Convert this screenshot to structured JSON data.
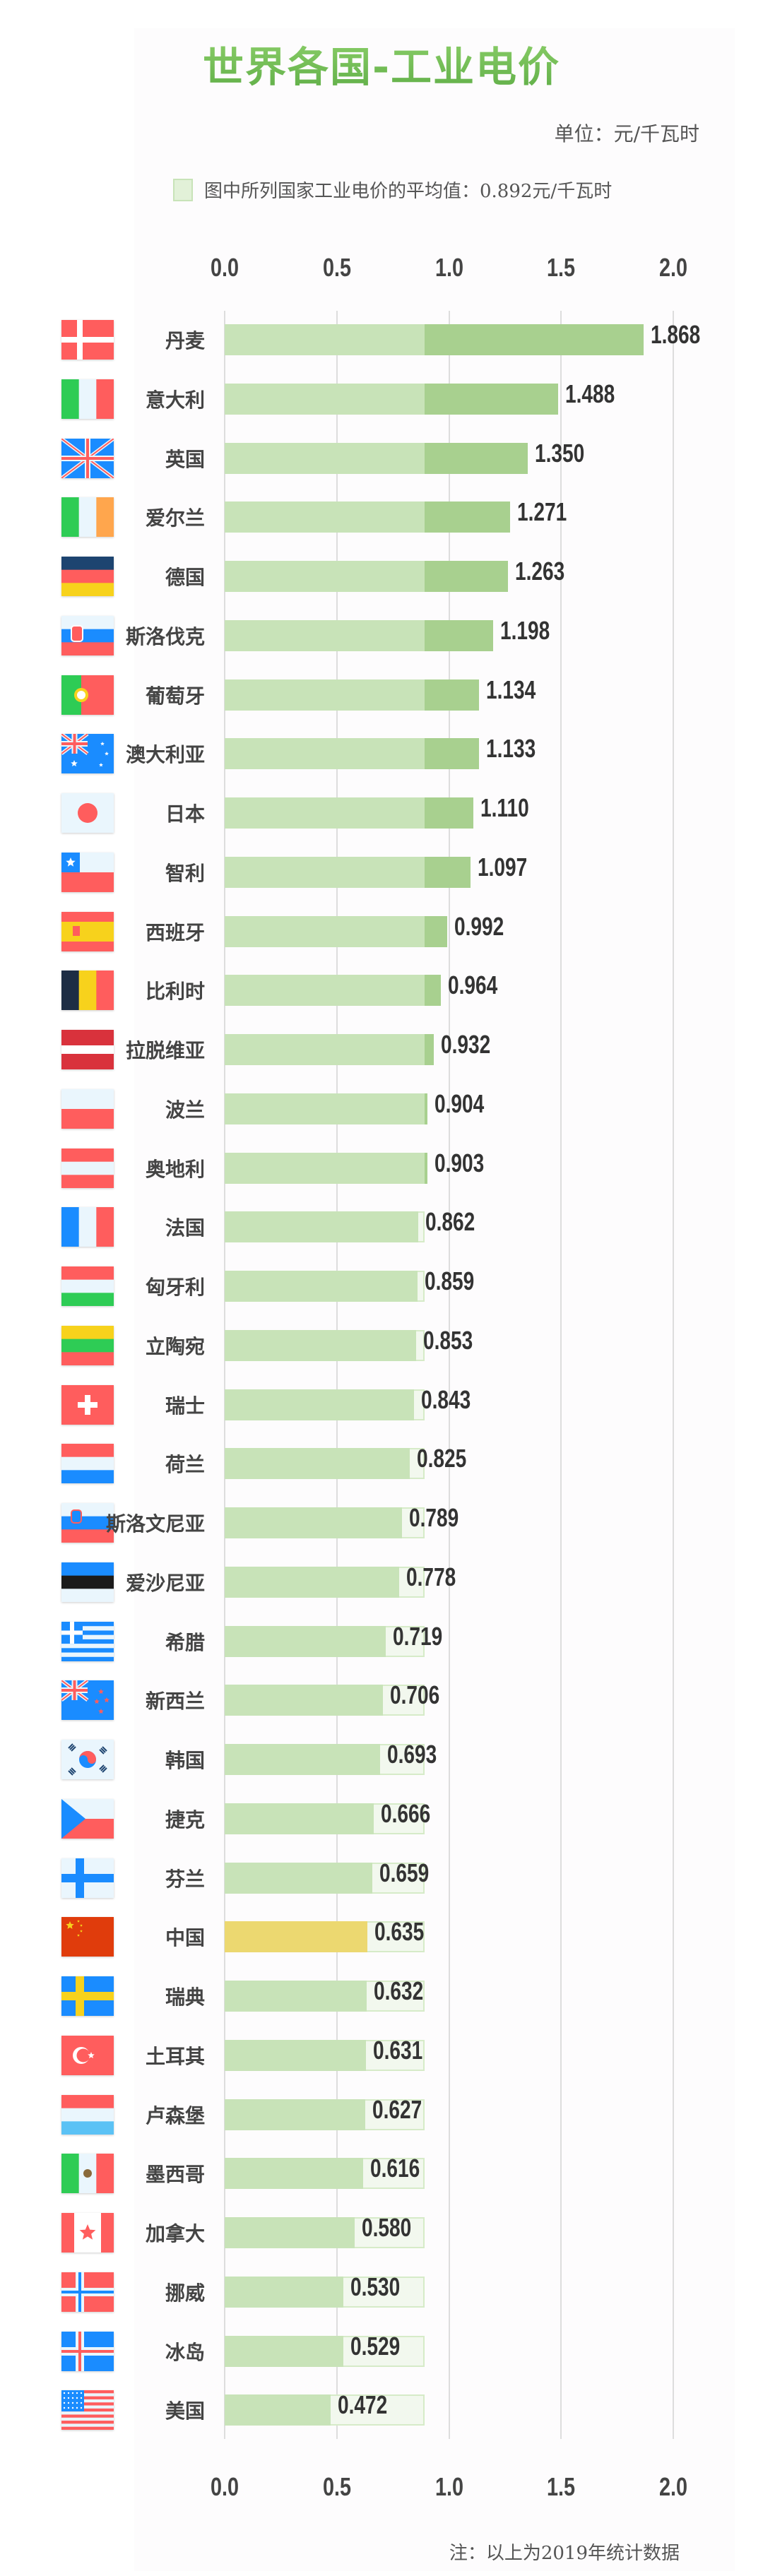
{
  "title": "世界各国-工业电价",
  "unit": "单位：元/千瓦时",
  "legend": "图中所列国家工业电价的平均值：0.892元/千瓦时",
  "footer": "注：以上为2019年统计数据",
  "colors": {
    "below_mean": "#c8e3b8",
    "above_mean": "#a8d08f",
    "highlight": "#ecd870",
    "mean_band": "#f2f8ee",
    "mean_border": "#d6ebc8",
    "title": "#6cbb50"
  },
  "chart_data": {
    "type": "bar",
    "orientation": "horizontal",
    "title": "世界各国-工业电价",
    "unit": "元/千瓦时",
    "xlim": [
      0,
      2.0
    ],
    "ticks": [
      "0.0",
      "0.5",
      "1.0",
      "1.5",
      "2.0"
    ],
    "grid": true,
    "mean": 0.892,
    "highlight": "中国",
    "categories": [
      "丹麦",
      "意大利",
      "英国",
      "爱尔兰",
      "德国",
      "斯洛伐克",
      "葡萄牙",
      "澳大利亚",
      "日本",
      "智利",
      "西班牙",
      "比利时",
      "拉脱维亚",
      "波兰",
      "奥地利",
      "法国",
      "匈牙利",
      "立陶宛",
      "瑞士",
      "荷兰",
      "斯洛文尼亚",
      "爱沙尼亚",
      "希腊",
      "新西兰",
      "韩国",
      "捷克",
      "芬兰",
      "中国",
      "瑞典",
      "土耳其",
      "卢森堡",
      "墨西哥",
      "加拿大",
      "挪威",
      "冰岛",
      "美国"
    ],
    "values": [
      1.868,
      1.488,
      1.35,
      1.271,
      1.263,
      1.198,
      1.134,
      1.133,
      1.11,
      1.097,
      0.992,
      0.964,
      0.932,
      0.904,
      0.903,
      0.862,
      0.859,
      0.853,
      0.843,
      0.825,
      0.789,
      0.778,
      0.719,
      0.706,
      0.693,
      0.666,
      0.659,
      0.635,
      0.632,
      0.631,
      0.627,
      0.616,
      0.58,
      0.53,
      0.529,
      0.472
    ],
    "labels": [
      "1.868",
      "1.488",
      "1.350",
      "1.271",
      "1.263",
      "1.198",
      "1.134",
      "1.133",
      "1.110",
      "1.097",
      "0.992",
      "0.964",
      "0.932",
      "0.904",
      "0.903",
      "0.862",
      "0.859",
      "0.853",
      "0.843",
      "0.825",
      "0.789",
      "0.778",
      "0.719",
      "0.706",
      "0.693",
      "0.666",
      "0.659",
      "0.635",
      "0.632",
      "0.631",
      "0.627",
      "0.616",
      "0.580",
      "0.530",
      "0.529",
      "0.472"
    ],
    "flags": [
      "dk",
      "it",
      "gb",
      "ie",
      "de",
      "sk",
      "pt",
      "au",
      "jp",
      "cl",
      "es",
      "be",
      "lv",
      "pl",
      "at",
      "fr",
      "hu",
      "lt",
      "ch",
      "nl",
      "si",
      "ee",
      "gr",
      "nz",
      "kr",
      "cz",
      "fi",
      "cn",
      "se",
      "tr",
      "lu",
      "mx",
      "ca",
      "no",
      "is",
      "us"
    ]
  }
}
